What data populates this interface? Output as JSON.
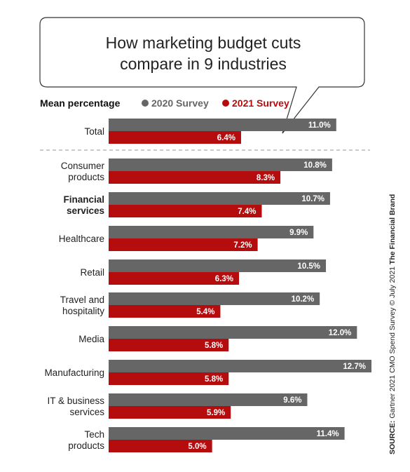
{
  "title_lines": [
    "How marketing budget cuts",
    "compare in 9 industries"
  ],
  "legend": {
    "label": "Mean percentage",
    "items": [
      {
        "name": "2020 Survey",
        "color": "#666666"
      },
      {
        "name": "2021 Survey",
        "color": "#b50d0d"
      }
    ]
  },
  "source": {
    "label": "SOURCE:",
    "text": " Gartner 2021 CMO Spend Survey © July 2021 ",
    "brand": "The Financial Brand"
  },
  "chart_data": {
    "type": "bar",
    "orientation": "horizontal",
    "unit": "%",
    "categories": [
      [
        "Total"
      ],
      [
        "Consumer",
        "products"
      ],
      [
        "Financial",
        "services"
      ],
      [
        "Healthcare"
      ],
      [
        "Retail"
      ],
      [
        "Travel and",
        "hospitality"
      ],
      [
        "Media"
      ],
      [
        "Manufacturing"
      ],
      [
        "IT & business",
        "services"
      ],
      [
        "Tech",
        "products"
      ]
    ],
    "highlighted_category": 2,
    "series": [
      {
        "name": "2020 Survey",
        "color": "#666666",
        "values": [
          11.0,
          10.8,
          10.7,
          9.9,
          10.5,
          10.2,
          12.0,
          12.7,
          9.6,
          11.4
        ]
      },
      {
        "name": "2021 Survey",
        "color": "#b50d0d",
        "values": [
          6.4,
          8.3,
          7.4,
          7.2,
          6.3,
          5.4,
          5.8,
          5.8,
          5.9,
          5.0
        ]
      }
    ],
    "xlim": [
      0,
      12.7
    ],
    "grid": false,
    "separator_after_first": true,
    "legend_position": "top"
  }
}
